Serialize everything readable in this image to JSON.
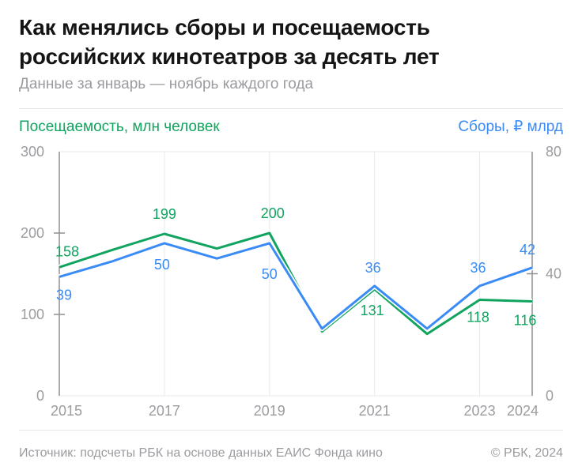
{
  "title": {
    "lines": [
      "Как менялись сборы и посещаемость",
      "российских кинотеатров за десять лет"
    ]
  },
  "subtitle": "Данные за январь — ноябрь каждого года",
  "legend": {
    "left_label": "Посещаемость, млн человек",
    "right_label": "Сборы, ₽ млрд"
  },
  "footer": {
    "source": "Источник: подсчеты РБК на основе данных ЕАИС Фонда кино",
    "copyright": "© РБК, 2024"
  },
  "colors": {
    "attendance_green": "#10A45F",
    "boxoffice_blue": "#3A8BF5",
    "grid": "#E8E8EA",
    "axis_spine": "#8F8F94",
    "axis_text": "#9C9CA1",
    "title_text": "#141414",
    "muted_text": "#9B9BA0",
    "background": "#FFFFFF"
  },
  "chart_data": {
    "type": "line",
    "title": "Как менялись сборы и посещаемость российских кинотеатров за десять лет",
    "subtitle": "Данные за январь — ноябрь каждого года",
    "x": [
      2015,
      2016,
      2017,
      2018,
      2019,
      2020,
      2021,
      2022,
      2023,
      2024
    ],
    "series": [
      {
        "name": "Посещаемость, млн человек",
        "axis": "left",
        "color_key": "attendance_green",
        "values": [
          158,
          179,
          199,
          181,
          200,
          79,
          131,
          76,
          118,
          116
        ],
        "point_labels": [
          {
            "i": 0,
            "text": "158",
            "dx": 10,
            "dy": -14
          },
          {
            "i": 2,
            "text": "199",
            "dx": 0,
            "dy": -19
          },
          {
            "i": 4,
            "text": "200",
            "dx": 4,
            "dy": -19
          },
          {
            "i": 6,
            "text": "131",
            "dx": -3,
            "dy": 33
          },
          {
            "i": 8,
            "text": "118",
            "dx": -2,
            "dy": 28
          },
          {
            "i": 9,
            "text": "116",
            "dx": -9,
            "dy": 30
          }
        ]
      },
      {
        "name": "Сборы, ₽ млрд",
        "axis": "right",
        "color_key": "boxoffice_blue",
        "values": [
          39,
          44,
          50,
          45,
          50,
          22,
          36,
          22,
          36,
          42
        ],
        "point_labels": [
          {
            "i": 0,
            "text": "39",
            "dx": 6,
            "dy": 29
          },
          {
            "i": 2,
            "text": "50",
            "dx": -3,
            "dy": 33
          },
          {
            "i": 4,
            "text": "50",
            "dx": 0,
            "dy": 45
          },
          {
            "i": 6,
            "text": "36",
            "dx": -2,
            "dy": -17
          },
          {
            "i": 8,
            "text": "36",
            "dx": -2,
            "dy": -17
          },
          {
            "i": 9,
            "text": "42",
            "dx": -6,
            "dy": -17
          }
        ]
      }
    ],
    "left_axis": {
      "label": "Посещаемость, млн человек",
      "range": [
        0,
        300
      ],
      "tick_labels": [
        0,
        100,
        200,
        300
      ],
      "tick_marks": [
        100,
        200
      ]
    },
    "right_axis": {
      "label": "Сборы, ₽ млрд",
      "range": [
        0,
        80
      ],
      "tick_labels": [
        0,
        40,
        80
      ],
      "tick_marks": [
        40
      ]
    },
    "x_ticks": [
      {
        "i": 0,
        "label": "2015",
        "dx": 9
      },
      {
        "i": 2,
        "label": "2017",
        "dx": 0
      },
      {
        "i": 4,
        "label": "2019",
        "dx": 0
      },
      {
        "i": 6,
        "label": "2021",
        "dx": 0
      },
      {
        "i": 8,
        "label": "2023",
        "dx": 0
      },
      {
        "i": 9,
        "label": "2024",
        "dx": -12
      }
    ],
    "grid": {
      "vertical_at_indices": [
        2,
        4,
        6,
        8
      ],
      "horizontal": false
    },
    "legend_position": "top"
  }
}
